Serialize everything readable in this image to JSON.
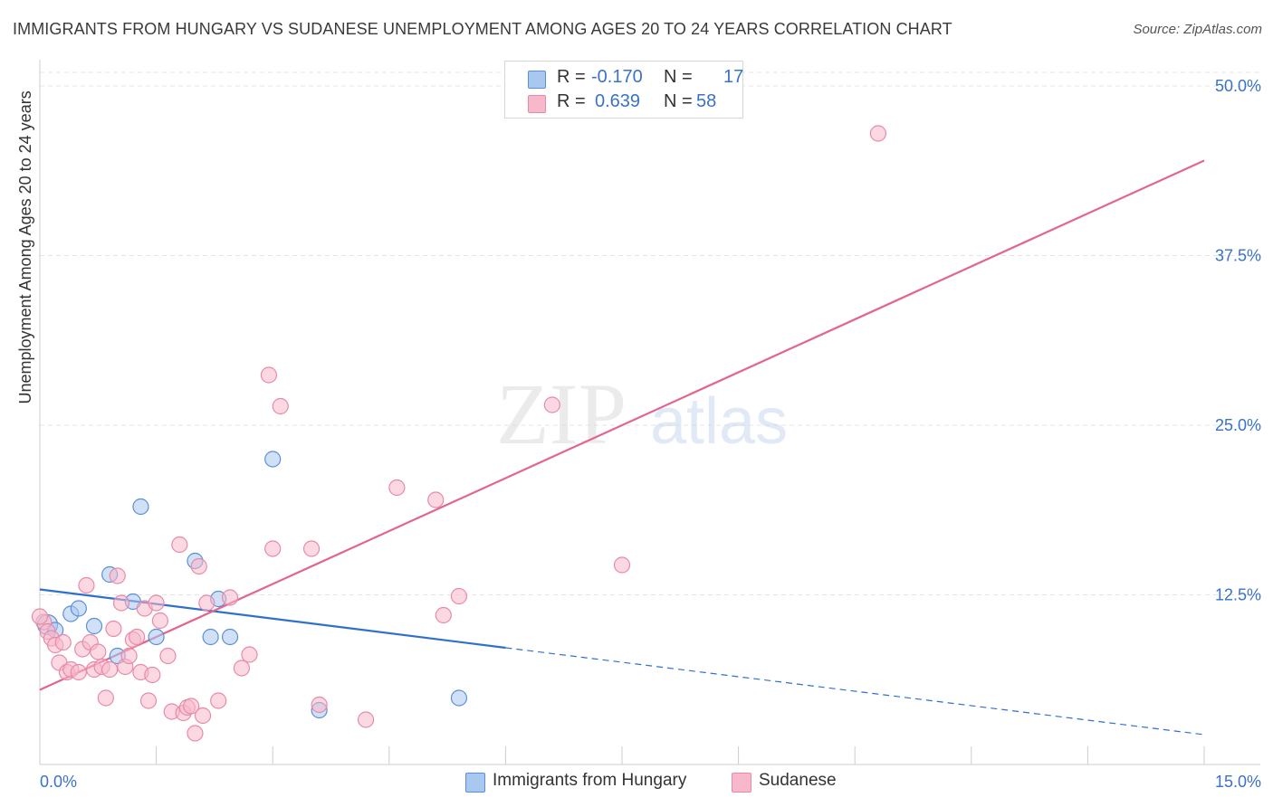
{
  "title": "IMMIGRANTS FROM HUNGARY VS SUDANESE UNEMPLOYMENT AMONG AGES 20 TO 24 YEARS CORRELATION CHART",
  "source": "Source: ZipAtlas.com",
  "watermark": {
    "zip": "ZIP",
    "atlas": "atlas"
  },
  "legend": {
    "rows": [
      {
        "r_label": "R =",
        "r_value": "-0.170",
        "n_label": "N =",
        "n_value": "17",
        "color": "#a9c8f0"
      },
      {
        "r_label": "R =",
        "r_value": "0.639",
        "n_label": "N =",
        "n_value": "58",
        "color": "#f7b8cb"
      }
    ]
  },
  "bottom_legend": [
    {
      "label": "Immigrants from Hungary",
      "color": "#a9c8f0"
    },
    {
      "label": "Sudanese",
      "color": "#f7b8cb"
    }
  ],
  "chart_data": {
    "type": "scatter",
    "title": "IMMIGRANTS FROM HUNGARY VS SUDANESE UNEMPLOYMENT AMONG AGES 20 TO 24 YEARS CORRELATION CHART",
    "xlabel": "",
    "ylabel": "Unemployment Among Ages 20 to 24 years",
    "xlim": [
      0,
      15
    ],
    "ylim": [
      0,
      50
    ],
    "x_tick_labels": [
      "0.0%",
      "15.0%"
    ],
    "y_ticks": [
      12.5,
      25.0,
      37.5,
      50.0
    ],
    "y_tick_labels": [
      "12.5%",
      "25.0%",
      "37.5%",
      "50.0%"
    ],
    "series": [
      {
        "name": "Immigrants from Hungary",
        "color": "#a9c8f0",
        "stroke": "#5a8fd8",
        "line_color": "#2f6fd0",
        "trend": {
          "x0": 0.0,
          "y0": 12.9,
          "x1": 6.0,
          "y1": 8.6,
          "x_ext": 15.0,
          "y_ext": 2.2
        },
        "points": [
          [
            0.1,
            10.3
          ],
          [
            0.2,
            9.9
          ],
          [
            0.4,
            11.1
          ],
          [
            0.5,
            11.5
          ],
          [
            0.7,
            10.2
          ],
          [
            0.9,
            14.0
          ],
          [
            1.0,
            8.0
          ],
          [
            1.2,
            12.0
          ],
          [
            1.3,
            19.0
          ],
          [
            1.5,
            9.4
          ],
          [
            2.0,
            15.0
          ],
          [
            2.2,
            9.4
          ],
          [
            2.3,
            12.2
          ],
          [
            2.45,
            9.4
          ],
          [
            3.0,
            22.5
          ],
          [
            3.6,
            4.0
          ],
          [
            5.4,
            4.9
          ]
        ]
      },
      {
        "name": "Sudanese",
        "color": "#f7b8cb",
        "stroke": "#e88aa6",
        "line_color": "#e06690",
        "trend": {
          "x0": 0.0,
          "y0": 5.5,
          "x1": 15.0,
          "y1": 44.5
        },
        "points": [
          [
            0.05,
            10.5
          ],
          [
            0.1,
            9.8
          ],
          [
            0.15,
            9.3
          ],
          [
            0.2,
            8.8
          ],
          [
            0.25,
            7.5
          ],
          [
            0.3,
            9.0
          ],
          [
            0.35,
            6.8
          ],
          [
            0.4,
            7.0
          ],
          [
            0.5,
            6.8
          ],
          [
            0.55,
            8.5
          ],
          [
            0.6,
            13.2
          ],
          [
            0.65,
            9.0
          ],
          [
            0.7,
            7.0
          ],
          [
            0.75,
            8.3
          ],
          [
            0.8,
            7.2
          ],
          [
            0.85,
            4.9
          ],
          [
            0.9,
            7.0
          ],
          [
            0.95,
            10.0
          ],
          [
            1.0,
            13.9
          ],
          [
            1.05,
            11.9
          ],
          [
            1.1,
            7.2
          ],
          [
            1.15,
            8.0
          ],
          [
            1.2,
            9.2
          ],
          [
            1.25,
            9.4
          ],
          [
            1.3,
            6.8
          ],
          [
            1.35,
            11.5
          ],
          [
            1.4,
            4.7
          ],
          [
            1.45,
            6.6
          ],
          [
            1.5,
            11.9
          ],
          [
            1.55,
            10.6
          ],
          [
            1.65,
            8.0
          ],
          [
            1.7,
            3.9
          ],
          [
            1.8,
            16.2
          ],
          [
            1.85,
            3.8
          ],
          [
            1.9,
            4.2
          ],
          [
            1.95,
            4.3
          ],
          [
            2.0,
            2.3
          ],
          [
            2.05,
            14.6
          ],
          [
            2.1,
            3.6
          ],
          [
            2.15,
            11.9
          ],
          [
            2.3,
            4.7
          ],
          [
            2.45,
            12.3
          ],
          [
            2.6,
            7.1
          ],
          [
            2.7,
            8.1
          ],
          [
            2.95,
            28.7
          ],
          [
            3.0,
            15.9
          ],
          [
            3.1,
            26.4
          ],
          [
            3.5,
            15.9
          ],
          [
            3.6,
            4.4
          ],
          [
            4.2,
            3.3
          ],
          [
            4.6,
            20.4
          ],
          [
            5.1,
            19.5
          ],
          [
            5.2,
            11.0
          ],
          [
            5.4,
            12.4
          ],
          [
            6.6,
            26.5
          ],
          [
            7.5,
            14.7
          ],
          [
            10.8,
            46.5
          ],
          [
            0.0,
            10.9
          ]
        ]
      }
    ]
  }
}
